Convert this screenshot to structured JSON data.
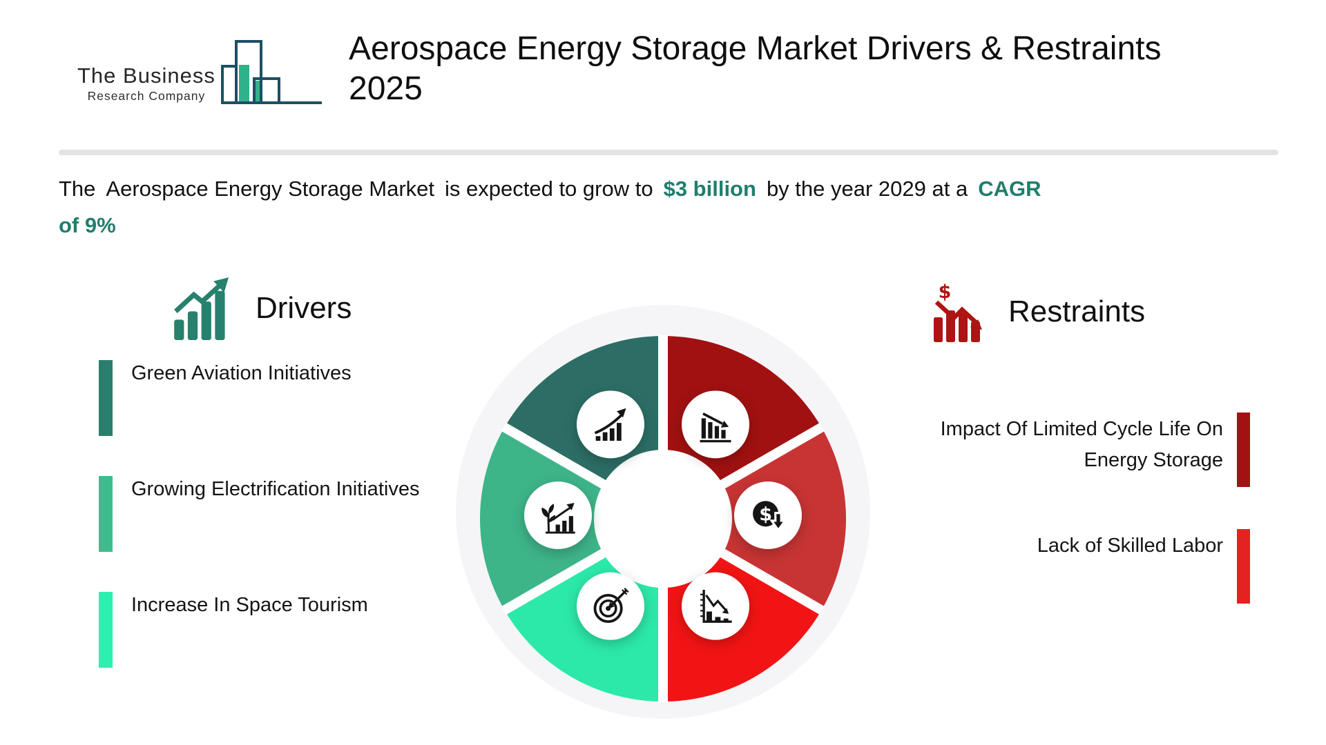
{
  "brand": {
    "logo_line1": "The Business",
    "logo_line2": "Research Company",
    "logo_outline_color": "#1d4f63",
    "logo_fill_color": "#2fb28b"
  },
  "header": {
    "title_line1": "Aerospace Energy Storage Market Drivers & Restraints",
    "title_line2": "2025"
  },
  "subtitle": {
    "highlight_color": "#1f7e6d",
    "lines": [
      [
        {
          "text": "The",
          "highlight": false
        },
        {
          "text": "Aerospace Energy Storage Market",
          "highlight": false
        },
        {
          "text": "is expected to grow to",
          "highlight": false
        },
        {
          "text": "$3 billion",
          "highlight": true
        },
        {
          "text": "by the year 2029 at a",
          "highlight": false
        },
        {
          "text": "CAGR",
          "highlight": true
        }
      ],
      [
        {
          "text": "of 9%",
          "highlight": true
        }
      ]
    ]
  },
  "drivers": {
    "heading": "Drivers",
    "icon_color": "#27816d",
    "items": [
      {
        "label": "Green Aviation Initiatives",
        "bar_color": "#2a7e6d"
      },
      {
        "label": "Growing Electrification Initiatives",
        "bar_color": "#3fbc8e"
      },
      {
        "label": "Increase In Space Tourism",
        "bar_color": "#2cf0af"
      }
    ]
  },
  "restraints": {
    "heading": "Restraints",
    "icon_color": "#ad1414",
    "items": [
      {
        "label": "Impact Of Limited Cycle Life On Energy Storage",
        "bar_color": "#a21212"
      },
      {
        "label": "Lack of Skilled Labor",
        "bar_color": "#e42222"
      }
    ]
  },
  "wheel": {
    "background_color": "#f5f5f7",
    "gap_color": "#ffffff",
    "segments": [
      {
        "side": "drivers",
        "color": "#2c6e65",
        "icon": "growth-trend-icon",
        "mid_angle": 120
      },
      {
        "side": "drivers",
        "color": "#3eb489",
        "icon": "sprout-growth-icon",
        "mid_angle": 180
      },
      {
        "side": "drivers",
        "color": "#2ce9a9",
        "icon": "target-icon",
        "mid_angle": 240
      },
      {
        "side": "restraints",
        "color": "#a11111",
        "icon": "declining-bars-icon",
        "mid_angle": 60
      },
      {
        "side": "restraints",
        "color": "#c83434",
        "icon": "dollar-decline-icon",
        "mid_angle": 0
      },
      {
        "side": "restraints",
        "color": "#f21414",
        "icon": "declining-chart-icon",
        "mid_angle": 300
      }
    ]
  }
}
